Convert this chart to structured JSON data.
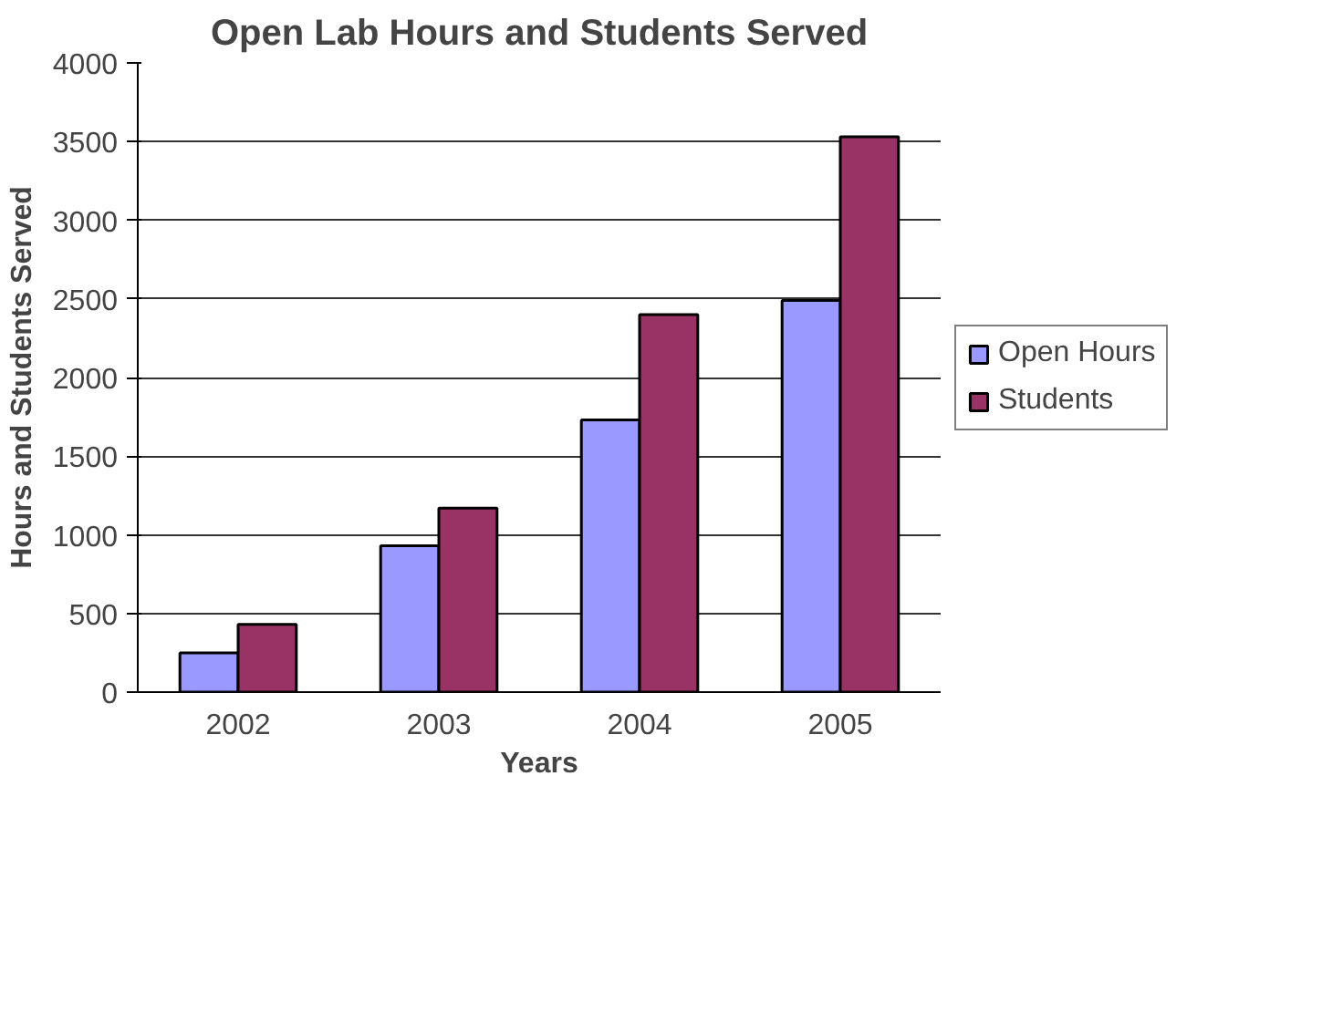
{
  "chart_data": {
    "type": "bar",
    "title": "Open Lab Hours and Students Served",
    "xlabel": "Years",
    "ylabel": "Hours and Students Served",
    "categories": [
      "2002",
      "2003",
      "2004",
      "2005"
    ],
    "series": [
      {
        "name": "Open Hours",
        "color": "#9999ff",
        "values": [
          250,
          930,
          1730,
          2490
        ]
      },
      {
        "name": "Students",
        "color": "#993366",
        "values": [
          430,
          1170,
          2400,
          3530
        ]
      }
    ],
    "ylim": [
      0,
      4000
    ],
    "yticks": [
      0,
      500,
      1000,
      1500,
      2000,
      2500,
      3000,
      3500,
      4000
    ],
    "grid": "y",
    "legend": "right"
  }
}
